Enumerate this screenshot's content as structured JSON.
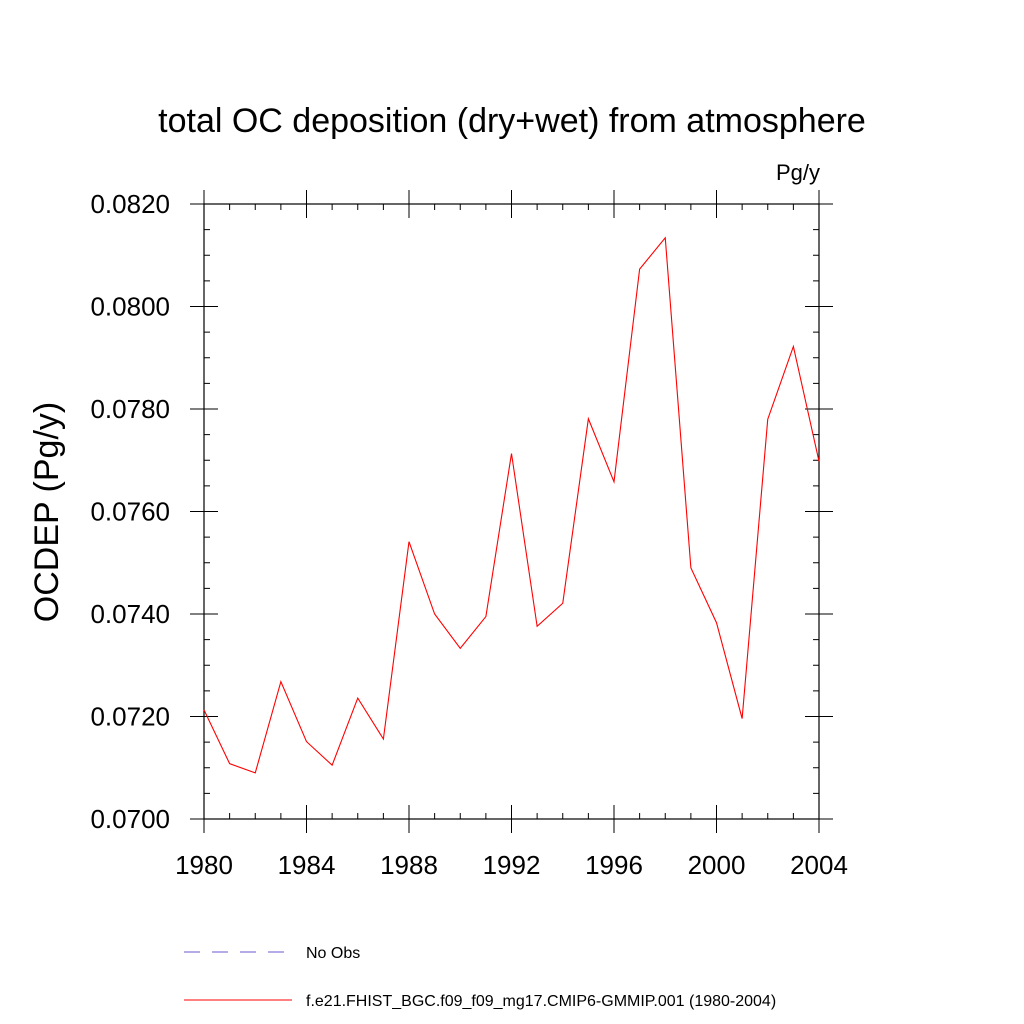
{
  "chart_data": {
    "type": "line",
    "title": "total OC deposition (dry+wet) from atmosphere",
    "units_label": "Pg/y",
    "ylabel": "OCDEP  (Pg/y)",
    "xlabel": "",
    "xlim": [
      1980,
      2004
    ],
    "ylim": [
      0.07,
      0.082
    ],
    "x_ticks": [
      1980,
      1984,
      1988,
      1992,
      1996,
      2000,
      2004
    ],
    "x_tick_labels": [
      "1980",
      "1984",
      "1988",
      "1992",
      "1996",
      "2000",
      "2004"
    ],
    "y_ticks": [
      0.07,
      0.072,
      0.074,
      0.076,
      0.078,
      0.08,
      0.082
    ],
    "y_tick_labels": [
      "0.0700",
      "0.0720",
      "0.0740",
      "0.0760",
      "0.0780",
      "0.0800",
      "0.0820"
    ],
    "x": [
      1980,
      1981,
      1982,
      1983,
      1984,
      1985,
      1986,
      1987,
      1988,
      1989,
      1990,
      1991,
      1992,
      1993,
      1994,
      1995,
      1996,
      1997,
      1998,
      1999,
      2000,
      2001,
      2002,
      2003,
      2004
    ],
    "series": [
      {
        "name": "f.e21.FHIST_BGC.f09_f09_mg17.CMIP6-GMMIP.001 (1980-2004)",
        "color": "#ff0000",
        "style": "solid",
        "values": [
          0.07213,
          0.07108,
          0.0709,
          0.07268,
          0.07151,
          0.07105,
          0.07236,
          0.07156,
          0.07541,
          0.074,
          0.07333,
          0.07395,
          0.07713,
          0.07376,
          0.07421,
          0.07781,
          0.07658,
          0.08073,
          0.08134,
          0.0749,
          0.07383,
          0.07196,
          0.0778,
          0.07922,
          0.07698
        ]
      }
    ],
    "legend": {
      "placement": "bottom",
      "entries": [
        {
          "label": "No Obs",
          "color": "#6a5acd",
          "style": "dashed"
        },
        {
          "label": "f.e21.FHIST_BGC.f09_f09_mg17.CMIP6-GMMIP.001 (1980-2004)",
          "color": "#ff0000",
          "style": "solid"
        }
      ]
    },
    "grid": false
  }
}
